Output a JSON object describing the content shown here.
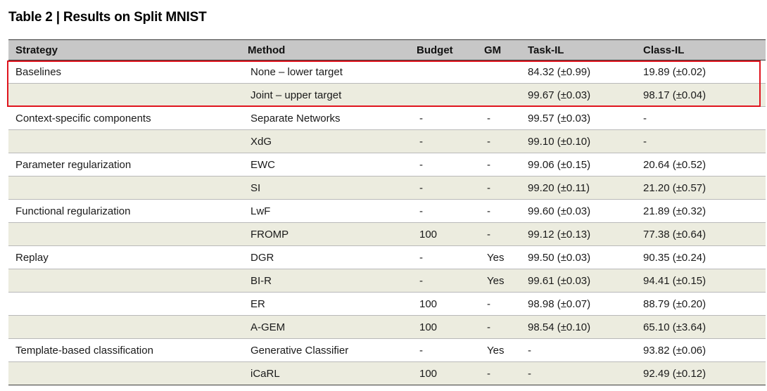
{
  "title": "Table 2 | Results on Split MNIST",
  "headers": {
    "strategy": "Strategy",
    "method": "Method",
    "budget": "Budget",
    "gm": "GM",
    "task_il": "Task-IL",
    "class_il": "Class-IL"
  },
  "rows": [
    {
      "strategy": "Baselines",
      "method": "None – lower target",
      "budget": "",
      "gm": "",
      "task_il": "84.32 (±0.99)",
      "class_il": "19.89 (±0.02)"
    },
    {
      "strategy": "",
      "method": "Joint – upper target",
      "budget": "",
      "gm": "",
      "task_il": "99.67 (±0.03)",
      "class_il": "98.17 (±0.04)"
    },
    {
      "strategy": "Context-specific components",
      "method": "Separate Networks",
      "budget": "-",
      "gm": "-",
      "task_il": "99.57 (±0.03)",
      "class_il": "-"
    },
    {
      "strategy": "",
      "method": "XdG",
      "budget": "-",
      "gm": "-",
      "task_il": "99.10 (±0.10)",
      "class_il": "-"
    },
    {
      "strategy": "Parameter regularization",
      "method": "EWC",
      "budget": "-",
      "gm": "-",
      "task_il": "99.06 (±0.15)",
      "class_il": "20.64 (±0.52)"
    },
    {
      "strategy": "",
      "method": "SI",
      "budget": "-",
      "gm": "-",
      "task_il": "99.20 (±0.11)",
      "class_il": "21.20 (±0.57)"
    },
    {
      "strategy": "Functional regularization",
      "method": "LwF",
      "budget": "-",
      "gm": "-",
      "task_il": "99.60 (±0.03)",
      "class_il": "21.89 (±0.32)"
    },
    {
      "strategy": "",
      "method": "FROMP",
      "budget": "100",
      "gm": "-",
      "task_il": "99.12 (±0.13)",
      "class_il": "77.38 (±0.64)"
    },
    {
      "strategy": "Replay",
      "method": "DGR",
      "budget": "-",
      "gm": "Yes",
      "task_il": "99.50 (±0.03)",
      "class_il": "90.35 (±0.24)"
    },
    {
      "strategy": "",
      "method": "BI-R",
      "budget": "-",
      "gm": "Yes",
      "task_il": "99.61 (±0.03)",
      "class_il": "94.41 (±0.15)"
    },
    {
      "strategy": "",
      "method": "ER",
      "budget": "100",
      "gm": "-",
      "task_il": "98.98 (±0.07)",
      "class_il": "88.79 (±0.20)"
    },
    {
      "strategy": "",
      "method": "A-GEM",
      "budget": "100",
      "gm": "-",
      "task_il": "98.54 (±0.10)",
      "class_il": "65.10 (±3.64)"
    },
    {
      "strategy": "Template-based classification",
      "method": "Generative Classifier",
      "budget": "-",
      "gm": "Yes",
      "task_il": "-",
      "class_il": "93.82 (±0.06)"
    },
    {
      "strategy": "",
      "method": "iCaRL",
      "budget": "100",
      "gm": "-",
      "task_il": "-",
      "class_il": "92.49 (±0.12)"
    }
  ],
  "colors": {
    "header_bg": "#c7c7c7",
    "shaded_row_bg": "#ececdf",
    "highlight_border": "#e0141e"
  }
}
